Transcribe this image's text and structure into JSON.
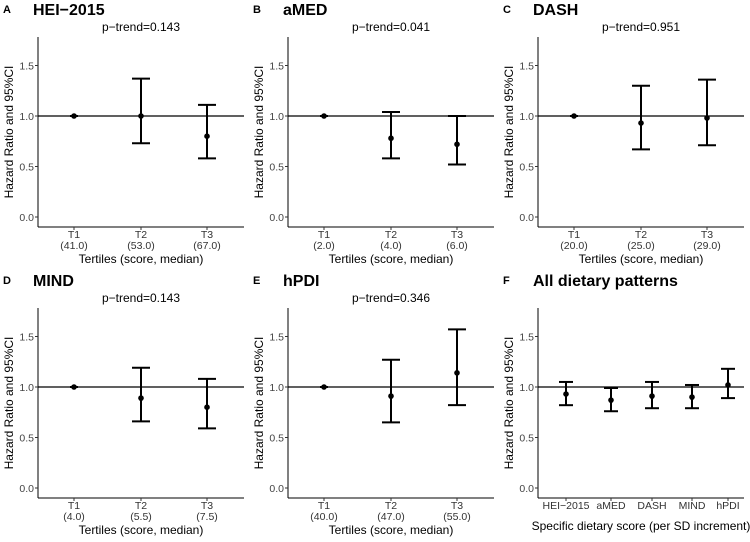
{
  "chart_data": [
    {
      "type": "scatter",
      "panel": "A",
      "title": "HEI−2015",
      "subtitle": "p−trend=0.143",
      "xlabel": "Tertiles (score, median)",
      "ylabel": "Hazard Ratio and 95%CI",
      "ylim": [
        -0.03,
        1.75
      ],
      "yticks": [
        "0.0",
        "0.5",
        "1.0",
        "1.5"
      ],
      "reference_line": 1.0,
      "categories": [
        "T1",
        "T2",
        "T3"
      ],
      "category_sublabels": [
        "(41.0)",
        "(53.0)",
        "(67.0)"
      ],
      "values": [
        1.0,
        1.0,
        0.8
      ],
      "lower": [
        1.0,
        0.73,
        0.58
      ],
      "upper": [
        1.0,
        1.37,
        1.11
      ]
    },
    {
      "type": "scatter",
      "panel": "B",
      "title": "aMED",
      "subtitle": "p−trend=0.041",
      "xlabel": "Tertiles (score, median)",
      "ylabel": "Hazard Ratio and 95%CI",
      "ylim": [
        -0.03,
        1.75
      ],
      "yticks": [
        "0.0",
        "0.5",
        "1.0",
        "1.5"
      ],
      "reference_line": 1.0,
      "categories": [
        "T1",
        "T2",
        "T3"
      ],
      "category_sublabels": [
        "(2.0)",
        "(4.0)",
        "(6.0)"
      ],
      "values": [
        1.0,
        0.78,
        0.72
      ],
      "lower": [
        1.0,
        0.58,
        0.52
      ],
      "upper": [
        1.0,
        1.04,
        1.0
      ]
    },
    {
      "type": "scatter",
      "panel": "C",
      "title": "DASH",
      "subtitle": "p−trend=0.951",
      "xlabel": "Tertiles (score, median)",
      "ylabel": "Hazard Ratio and 95%CI",
      "ylim": [
        -0.03,
        1.75
      ],
      "yticks": [
        "0.0",
        "0.5",
        "1.0",
        "1.5"
      ],
      "reference_line": 1.0,
      "categories": [
        "T1",
        "T2",
        "T3"
      ],
      "category_sublabels": [
        "(20.0)",
        "(25.0)",
        "(29.0)"
      ],
      "values": [
        1.0,
        0.93,
        0.98
      ],
      "lower": [
        1.0,
        0.67,
        0.71
      ],
      "upper": [
        1.0,
        1.3,
        1.36
      ]
    },
    {
      "type": "scatter",
      "panel": "D",
      "title": "MIND",
      "subtitle": "p−trend=0.143",
      "xlabel": "Tertiles (score, median)",
      "ylabel": "Hazard Ratio and 95%CI",
      "ylim": [
        -0.03,
        1.75
      ],
      "yticks": [
        "0.0",
        "0.5",
        "1.0",
        "1.5"
      ],
      "reference_line": 1.0,
      "categories": [
        "T1",
        "T2",
        "T3"
      ],
      "category_sublabels": [
        "(4.0)",
        "(5.5)",
        "(7.5)"
      ],
      "values": [
        1.0,
        0.89,
        0.8
      ],
      "lower": [
        1.0,
        0.66,
        0.59
      ],
      "upper": [
        1.0,
        1.19,
        1.08
      ]
    },
    {
      "type": "scatter",
      "panel": "E",
      "title": "hPDI",
      "subtitle": "p−trend=0.346",
      "xlabel": "Tertiles (score, median)",
      "ylabel": "Hazard Ratio and 95%CI",
      "ylim": [
        -0.03,
        1.75
      ],
      "yticks": [
        "0.0",
        "0.5",
        "1.0",
        "1.5"
      ],
      "reference_line": 1.0,
      "categories": [
        "T1",
        "T2",
        "T3"
      ],
      "category_sublabels": [
        "(40.0)",
        "(47.0)",
        "(55.0)"
      ],
      "values": [
        1.0,
        0.91,
        1.14
      ],
      "lower": [
        1.0,
        0.65,
        0.82
      ],
      "upper": [
        1.0,
        1.27,
        1.57
      ]
    },
    {
      "type": "scatter",
      "panel": "F",
      "title": "All dietary patterns",
      "subtitle": "",
      "xlabel": "Specific dietary score (per SD increment)",
      "ylabel": "Hazard Ratio and 95%CI",
      "ylim": [
        -0.03,
        1.75
      ],
      "yticks": [
        "0.0",
        "0.5",
        "1.0",
        "1.5"
      ],
      "reference_line": 1.0,
      "categories": [
        "HEI−2015",
        "aMED",
        "DASH",
        "MIND",
        "hPDI"
      ],
      "category_sublabels": [],
      "values": [
        0.93,
        0.87,
        0.91,
        0.9,
        1.02
      ],
      "lower": [
        0.82,
        0.76,
        0.79,
        0.79,
        0.89
      ],
      "upper": [
        1.05,
        0.99,
        1.05,
        1.02,
        1.18
      ]
    }
  ]
}
